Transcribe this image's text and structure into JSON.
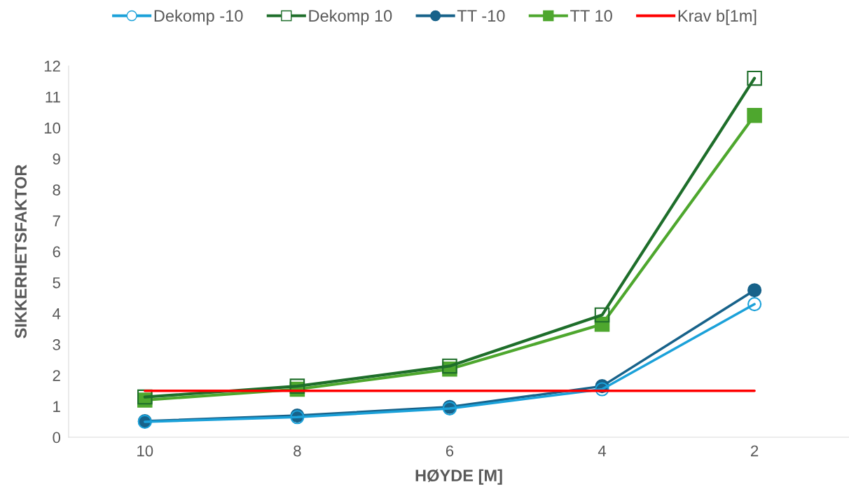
{
  "chart_data": {
    "type": "line",
    "xlabel": "HØYDE [M]",
    "ylabel": "SIKKERHETSFAKTOR",
    "categories": [
      "10",
      "8",
      "6",
      "4",
      "2"
    ],
    "series": [
      {
        "name": "Dekomp -10",
        "color": "#1ba1d9",
        "marker": "circle",
        "values": [
          0.5,
          0.65,
          0.93,
          1.55,
          4.3
        ]
      },
      {
        "name": "Dekomp 10",
        "color": "#1e6e2a",
        "marker": "square",
        "values": [
          1.3,
          1.65,
          2.3,
          3.95,
          11.6
        ]
      },
      {
        "name": "TT -10",
        "color": "#17628a",
        "marker": "circle",
        "values": [
          0.52,
          0.7,
          0.98,
          1.65,
          4.75
        ]
      },
      {
        "name": "TT 10",
        "color": "#4ea72e",
        "marker": "square",
        "values": [
          1.2,
          1.55,
          2.2,
          3.65,
          10.4
        ]
      },
      {
        "name": "Krav b[1m]",
        "color": "#ff0000",
        "marker": "none",
        "values": [
          1.5,
          1.5,
          1.5,
          1.5,
          1.5
        ]
      }
    ],
    "ylim": [
      0,
      12
    ],
    "yticks": [
      0,
      1,
      2,
      3,
      4,
      5,
      6,
      7,
      8,
      9,
      10,
      11,
      12
    ],
    "grid": false,
    "legend": "top"
  }
}
